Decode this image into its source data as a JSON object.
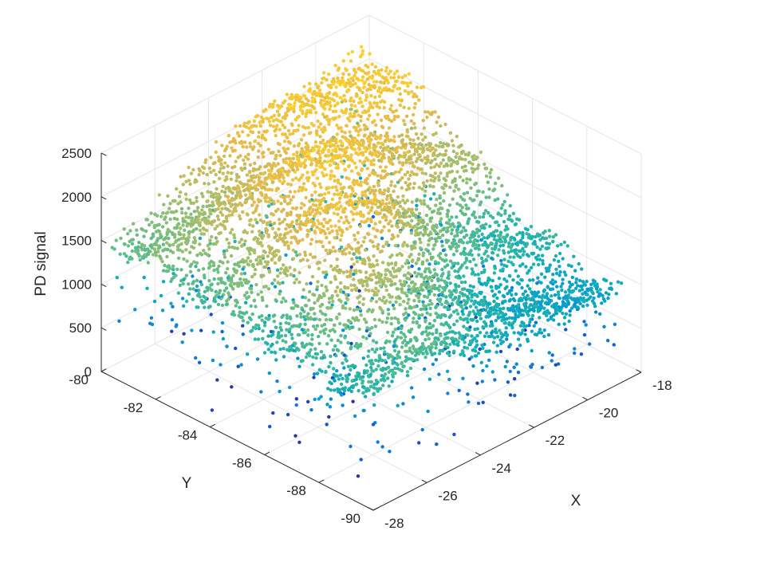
{
  "chart_data": {
    "type": "scatter",
    "subtype": "scatter3d",
    "title": "",
    "xlabel": "X",
    "ylabel": "Y",
    "zlabel": "PD signal",
    "xlim": [
      -28,
      -18
    ],
    "ylim": [
      -90,
      -80
    ],
    "zlim": [
      0,
      2500
    ],
    "x_ticks": [
      -28,
      -26,
      -24,
      -22,
      -20,
      -18
    ],
    "y_ticks": [
      -90,
      -88,
      -86,
      -84,
      -82,
      -80
    ],
    "z_ticks": [
      0,
      500,
      1000,
      1500,
      2000,
      2500
    ],
    "x_tick_labels": [
      "-28",
      "-26",
      "-24",
      "-22",
      "-20",
      "-18"
    ],
    "y_tick_labels": [
      "-90",
      "-88",
      "-86",
      "-84",
      "-82",
      "-80"
    ],
    "z_tick_labels": [
      "0",
      "500",
      "1000",
      "1500",
      "2000",
      "2500"
    ],
    "grid": true,
    "colormap": "parula",
    "color_by": "z",
    "surface_samples": [
      {
        "x": -27.5,
        "y": -80.5,
        "z": 1500
      },
      {
        "x": -25.5,
        "y": -80.5,
        "z": 1650
      },
      {
        "x": -23.5,
        "y": -80.5,
        "z": 1900
      },
      {
        "x": -21.5,
        "y": -80.5,
        "z": 2100
      },
      {
        "x": -19.5,
        "y": -80.5,
        "z": 2200
      },
      {
        "x": -27.5,
        "y": -82.5,
        "z": 1400
      },
      {
        "x": -25.5,
        "y": -82.5,
        "z": 1800
      },
      {
        "x": -23.5,
        "y": -82.5,
        "z": 2050
      },
      {
        "x": -21.5,
        "y": -82.5,
        "z": 2150
      },
      {
        "x": -19.5,
        "y": -82.5,
        "z": 2000
      },
      {
        "x": -27.5,
        "y": -84.5,
        "z": 1350
      },
      {
        "x": -25.5,
        "y": -84.5,
        "z": 1950
      },
      {
        "x": -23.5,
        "y": -84.5,
        "z": 2200
      },
      {
        "x": -21.5,
        "y": -84.5,
        "z": 1900
      },
      {
        "x": -19.5,
        "y": -84.5,
        "z": 1600
      },
      {
        "x": -27.5,
        "y": -86.5,
        "z": 1250
      },
      {
        "x": -25.5,
        "y": -86.5,
        "z": 1900
      },
      {
        "x": -23.5,
        "y": -86.5,
        "z": 1800
      },
      {
        "x": -21.5,
        "y": -86.5,
        "z": 1300
      },
      {
        "x": -19.5,
        "y": -86.5,
        "z": 1150
      },
      {
        "x": -27.5,
        "y": -88.5,
        "z": 1200
      },
      {
        "x": -25.5,
        "y": -88.5,
        "z": 1450
      },
      {
        "x": -23.5,
        "y": -88.5,
        "z": 1200
      },
      {
        "x": -21.5,
        "y": -88.5,
        "z": 1000
      },
      {
        "x": -19.5,
        "y": -88.5,
        "z": 950
      }
    ]
  }
}
